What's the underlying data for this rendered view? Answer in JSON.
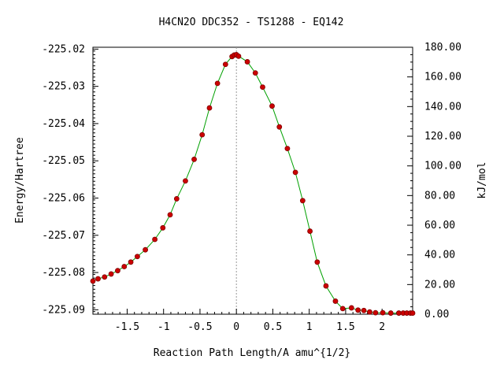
{
  "chart_data": {
    "type": "line",
    "title": "H4CN2O   DDC352 - TS1288 - EQ142",
    "xlabel": "Reaction Path Length/A amu^{1/2}",
    "ylabel": "Energy/Hartree",
    "y2label": "kJ/mol",
    "xlim": [
      -1.97,
      2.42
    ],
    "ylim": [
      -225.0912,
      -225.0195
    ],
    "y2lim": [
      0.0,
      180.0
    ],
    "x_ticks": [
      -1.5,
      -1,
      -0.5,
      0,
      0.5,
      1,
      1.5,
      2
    ],
    "x_tick_labels": [
      "-1.5",
      "-1",
      "-0.5",
      "0",
      "0.5",
      "1",
      "1.5",
      "2"
    ],
    "y_ticks": [
      -225.02,
      -225.03,
      -225.04,
      -225.05,
      -225.06,
      -225.07,
      -225.08,
      -225.09
    ],
    "y_tick_labels": [
      "-225.02",
      "-225.03",
      "-225.04",
      "-225.05",
      "-225.06",
      "-225.07",
      "-225.08",
      "-225.09"
    ],
    "y2_ticks": [
      0,
      20,
      40,
      60,
      80,
      100,
      120,
      140,
      160,
      180
    ],
    "y2_tick_labels": [
      "0.00",
      "20.00",
      "40.00",
      "60.00",
      "80.00",
      "100.00",
      "120.00",
      "140.00",
      "160.00",
      "180.00"
    ],
    "ts_x": 0.0,
    "grid": false,
    "line_color": "#00a000",
    "marker_color": "#cc0000",
    "marker_edge_color": "#800000",
    "ts_line_color": "#999999",
    "series": [
      {
        "x": [
          -1.97,
          -1.9,
          -1.81,
          -1.72,
          -1.63,
          -1.54,
          -1.45,
          -1.36,
          -1.25,
          -1.12,
          -1.01,
          -0.91,
          -0.82,
          -0.7,
          -0.58,
          -0.47,
          -0.37,
          -0.26,
          -0.15,
          -0.06,
          -0.03,
          0.0,
          0.03,
          0.15,
          0.26,
          0.36,
          0.49,
          0.59,
          0.7,
          0.81,
          0.91,
          1.01,
          1.11,
          1.23,
          1.36,
          1.46,
          1.58,
          1.67,
          1.75,
          1.83,
          1.91,
          2.01,
          2.12,
          2.23,
          2.29,
          2.34,
          2.39,
          2.42
        ],
        "y": [
          -225.0823,
          -225.0817,
          -225.0812,
          -225.0804,
          -225.0795,
          -225.0784,
          -225.0772,
          -225.0757,
          -225.0739,
          -225.0711,
          -225.068,
          -225.0645,
          -225.0602,
          -225.0554,
          -225.0496,
          -225.043,
          -225.0358,
          -225.0292,
          -225.0241,
          -225.022,
          -225.0216,
          -225.0215,
          -225.0219,
          -225.0234,
          -225.0264,
          -225.0302,
          -225.0353,
          -225.0409,
          -225.0467,
          -225.0531,
          -225.0607,
          -225.0689,
          -225.0772,
          -225.0836,
          -225.0877,
          -225.0897,
          -225.0895,
          -225.0901,
          -225.0902,
          -225.0906,
          -225.0908,
          -225.0908,
          -225.0909,
          -225.0909,
          -225.0909,
          -225.0909,
          -225.0909,
          -225.0909
        ]
      }
    ]
  }
}
